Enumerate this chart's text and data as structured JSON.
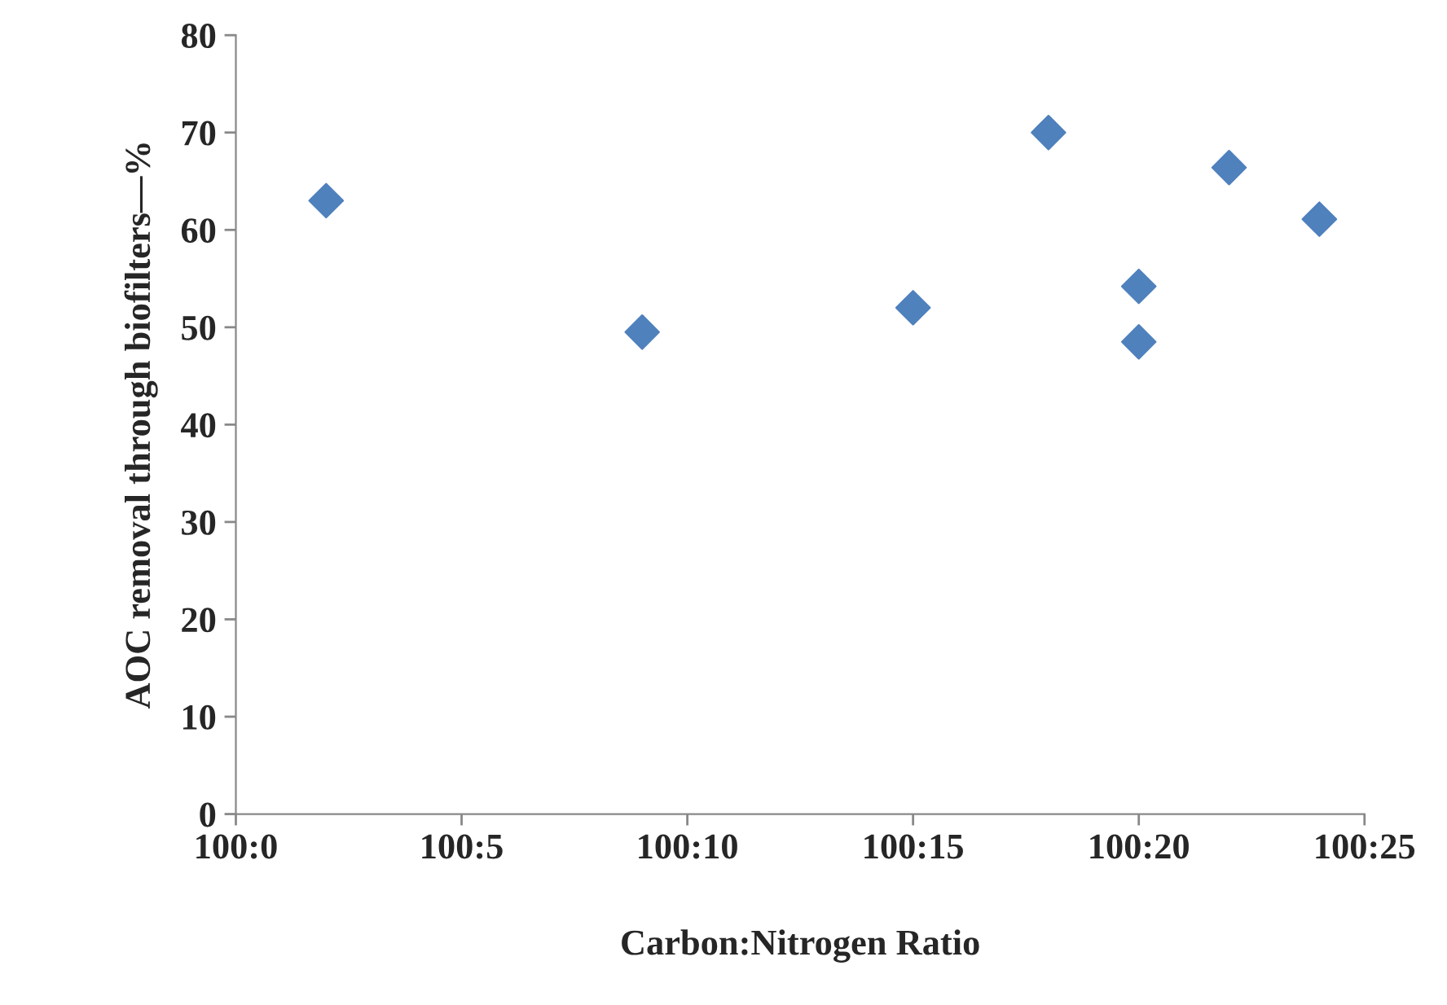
{
  "chart_data": {
    "type": "scatter",
    "xlabel": "Carbon:Nitrogen Ratio",
    "ylabel": "AOC removal through biofilters—%",
    "categories": [
      "100:0",
      null,
      null,
      null,
      null,
      "100:5",
      null,
      null,
      null,
      null,
      "100:10",
      null,
      null,
      null,
      null,
      "100:15",
      null,
      null,
      null,
      null,
      "100:20",
      null,
      null,
      null,
      null,
      "100:25"
    ],
    "series": [
      {
        "color": "#4f81bd",
        "values": [
          null,
          null,
          63,
          null,
          null,
          null,
          null,
          null,
          null,
          49.5,
          null,
          null,
          null,
          null,
          null,
          52,
          null,
          null,
          70,
          null,
          54.2,
          null,
          66.4,
          null,
          61.1,
          null
        ]
      },
      {
        "color": "#4f81bd",
        "values": [
          null,
          null,
          null,
          null,
          null,
          null,
          null,
          null,
          null,
          null,
          null,
          null,
          null,
          null,
          null,
          null,
          null,
          null,
          null,
          null,
          48.5,
          null,
          null,
          null,
          null,
          null
        ]
      }
    ],
    "marker": "diamond",
    "grid": false,
    "ylim": [
      0,
      80
    ],
    "yticks": [
      0,
      10,
      20,
      30,
      40,
      50,
      60,
      70,
      80
    ]
  }
}
